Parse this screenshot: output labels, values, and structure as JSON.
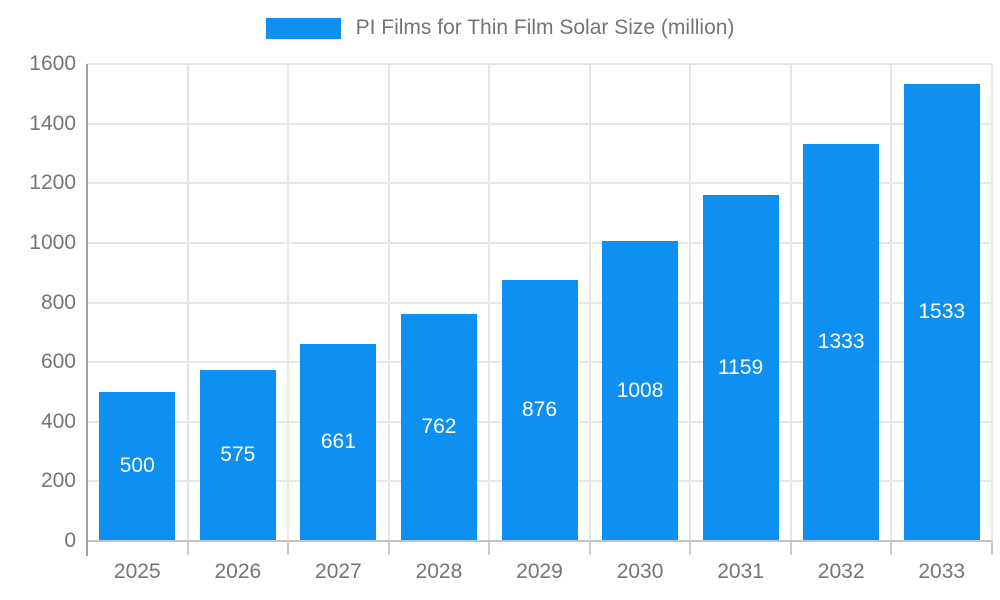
{
  "legend": {
    "label": "PI Films for Thin Film Solar Size (million)"
  },
  "chart_data": {
    "type": "bar",
    "title": "PI Films for Thin Film Solar Size (million)",
    "categories": [
      "2025",
      "2026",
      "2027",
      "2028",
      "2029",
      "2030",
      "2031",
      "2032",
      "2033"
    ],
    "values": [
      500,
      575,
      661,
      762,
      876,
      1008,
      1159,
      1333,
      1533
    ],
    "xlabel": "",
    "ylabel": "",
    "ylim": [
      0,
      1600
    ],
    "yticks": [
      0,
      200,
      400,
      600,
      800,
      1000,
      1200,
      1400,
      1600
    ],
    "grid": true,
    "legend_position": "top",
    "bar_color": "#0d90f2",
    "value_label_color": "#ffffff",
    "axis_text_color": "#757575",
    "gridline_color": "#e6e6e6",
    "axis_line_color": "#a0a0a0"
  }
}
